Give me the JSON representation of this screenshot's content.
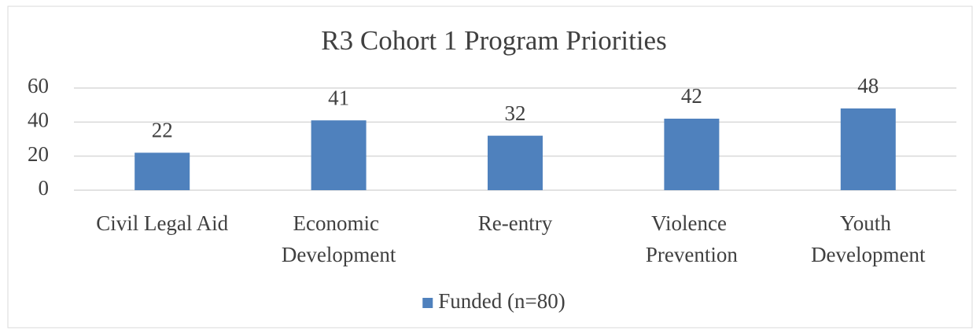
{
  "chart_data": {
    "type": "bar",
    "title": "R3 Cohort 1 Program Priorities",
    "categories": [
      "Civil Legal Aid",
      "Economic Development",
      "Re-entry",
      "Violence Prevention",
      "Youth Development"
    ],
    "series": [
      {
        "name": "Funded (n=80)",
        "color": "#4f81bd",
        "values": [
          22,
          41,
          32,
          42,
          48
        ]
      }
    ],
    "ylim": [
      0,
      60
    ],
    "yticks": [
      0,
      20,
      40,
      60
    ],
    "grid": true,
    "legend": "bottom"
  }
}
